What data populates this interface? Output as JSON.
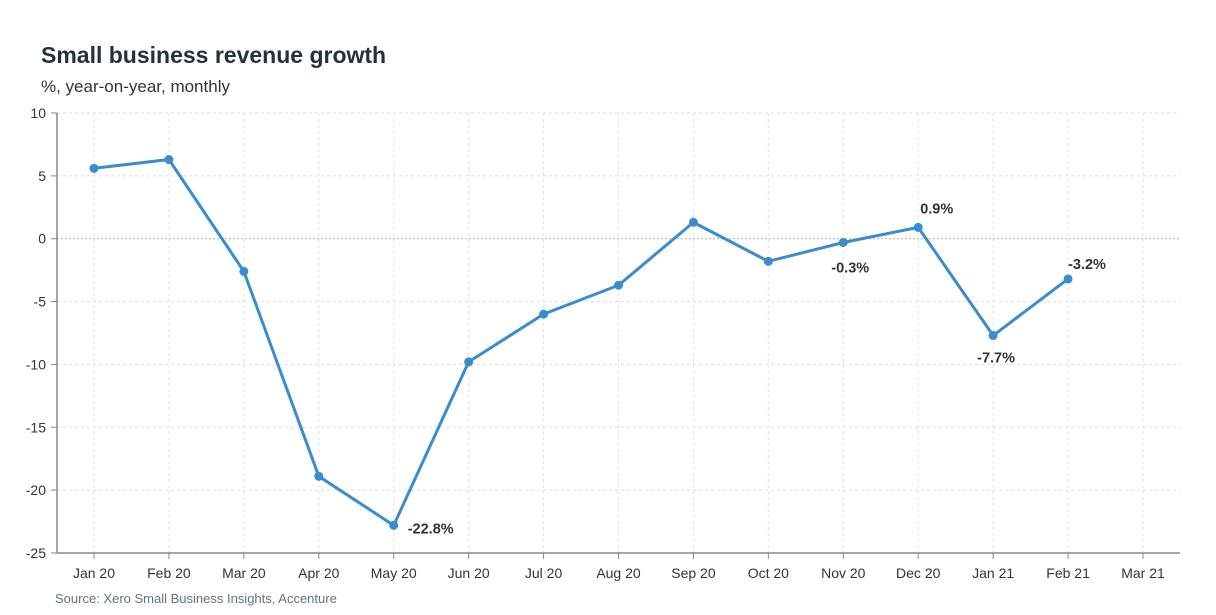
{
  "chart_data": {
    "type": "line",
    "title": "Small business revenue growth",
    "subtitle": "%, year-on-year, monthly",
    "source": "Source: Xero Small Business Insights, Accenture",
    "xlabel": "",
    "ylabel": "",
    "categories": [
      "Jan 20",
      "Feb 20",
      "Mar 20",
      "Apr 20",
      "May 20",
      "Jun 20",
      "Jul 20",
      "Aug 20",
      "Sep 20",
      "Oct 20",
      "Nov 20",
      "Dec 20",
      "Jan 21",
      "Feb 21",
      "Mar 21"
    ],
    "ylim": [
      -25,
      10
    ],
    "yticks": [
      10,
      5,
      0,
      -5,
      -10,
      -15,
      -20,
      -25
    ],
    "grid": true,
    "color": "#3a8ccc",
    "series": [
      {
        "values": [
          5.6,
          6.3,
          -2.6,
          -18.9,
          -22.8,
          -9.8,
          -6.0,
          -3.7,
          1.3,
          -1.8,
          -0.3,
          0.9,
          -7.7,
          -3.2,
          null
        ]
      }
    ],
    "data_labels": [
      {
        "category": "May 20",
        "text": "-22.8%"
      },
      {
        "category": "Nov 20",
        "text": "-0.3%"
      },
      {
        "category": "Dec 20",
        "text": "0.9%"
      },
      {
        "category": "Jan 21",
        "text": "-7.7%"
      },
      {
        "category": "Feb 21",
        "text": "-3.2%"
      }
    ]
  }
}
